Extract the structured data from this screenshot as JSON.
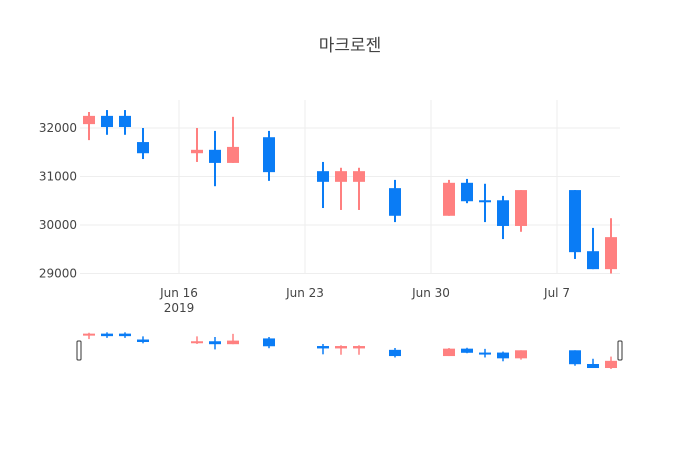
{
  "chart_data": {
    "type": "candlestick",
    "title": "마크로젠",
    "xlabel": "",
    "ylabel": "",
    "ylim": [
      28980,
      32560
    ],
    "y_ticks": [
      29000,
      30000,
      31000,
      32000
    ],
    "x_ticks": [
      {
        "date": "2019-06-16",
        "label": "Jun 16",
        "sublabel": "2019"
      },
      {
        "date": "2019-06-23",
        "label": "Jun 23",
        "sublabel": ""
      },
      {
        "date": "2019-06-30",
        "label": "Jun 30",
        "sublabel": ""
      },
      {
        "date": "2019-07-07",
        "label": "Jul 7",
        "sublabel": ""
      }
    ],
    "x_range": [
      "2019-06-11",
      "2019-07-10"
    ],
    "grid": true,
    "rangeslider": true,
    "increasing_color": "#FF8080",
    "decreasing_color": "#0A7CF5",
    "candles": [
      {
        "date": "2019-06-11",
        "open": 32080,
        "high": 32330,
        "low": 31750,
        "close": 32250
      },
      {
        "date": "2019-06-12",
        "open": 32250,
        "high": 32370,
        "low": 31860,
        "close": 32020
      },
      {
        "date": "2019-06-13",
        "open": 32250,
        "high": 32370,
        "low": 31860,
        "close": 32020
      },
      {
        "date": "2019-06-14",
        "open": 31710,
        "high": 32000,
        "low": 31360,
        "close": 31480
      },
      {
        "date": "2019-06-17",
        "open": 31480,
        "high": 32000,
        "low": 31300,
        "close": 31550
      },
      {
        "date": "2019-06-18",
        "open": 31550,
        "high": 31940,
        "low": 30800,
        "close": 31280
      },
      {
        "date": "2019-06-19",
        "open": 31280,
        "high": 32230,
        "low": 31280,
        "close": 31610
      },
      {
        "date": "2019-06-21",
        "open": 31810,
        "high": 31940,
        "low": 30910,
        "close": 31090
      },
      {
        "date": "2019-06-24",
        "open": 31110,
        "high": 31300,
        "low": 30350,
        "close": 30890
      },
      {
        "date": "2019-06-25",
        "open": 30890,
        "high": 31180,
        "low": 30310,
        "close": 31110
      },
      {
        "date": "2019-06-26",
        "open": 30890,
        "high": 31180,
        "low": 30310,
        "close": 31110
      },
      {
        "date": "2019-06-28",
        "open": 30760,
        "high": 30930,
        "low": 30060,
        "close": 30190
      },
      {
        "date": "2019-07-01",
        "open": 30190,
        "high": 30930,
        "low": 30190,
        "close": 30870
      },
      {
        "date": "2019-07-02",
        "open": 30870,
        "high": 30950,
        "low": 30450,
        "close": 30490
      },
      {
        "date": "2019-07-03",
        "open": 30510,
        "high": 30850,
        "low": 30060,
        "close": 30470
      },
      {
        "date": "2019-07-04",
        "open": 30510,
        "high": 30600,
        "low": 29710,
        "close": 29980
      },
      {
        "date": "2019-07-05",
        "open": 29980,
        "high": 30720,
        "low": 29860,
        "close": 30720
      },
      {
        "date": "2019-07-08",
        "open": 30720,
        "high": 30720,
        "low": 29300,
        "close": 29440
      },
      {
        "date": "2019-07-09",
        "open": 29460,
        "high": 29940,
        "low": 29090,
        "close": 29090
      },
      {
        "date": "2019-07-10",
        "open": 29090,
        "high": 30140,
        "low": 29000,
        "close": 29750
      }
    ]
  }
}
